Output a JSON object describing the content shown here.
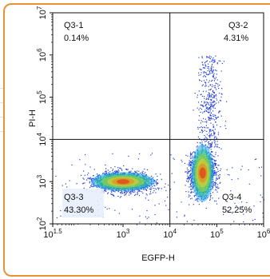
{
  "chart_data": {
    "type": "scatter",
    "title": "",
    "xlabel": "EGFP-H",
    "ylabel": "PI-H",
    "x_scale": "log",
    "y_scale": "log",
    "xlim": [
      31.6,
      1000000
    ],
    "ylim": [
      100,
      10000000
    ],
    "gates": {
      "x": 10000,
      "y": 10000
    },
    "grid": false,
    "x_ticks": [
      {
        "base": "10",
        "exp": "1.5"
      },
      {
        "base": "10",
        "exp": "3"
      },
      {
        "base": "10",
        "exp": "4"
      },
      {
        "base": "10",
        "exp": "5"
      },
      {
        "base": "10",
        "exp": "6"
      }
    ],
    "y_ticks": [
      {
        "base": "10",
        "exp": "2"
      },
      {
        "base": "10",
        "exp": "3"
      },
      {
        "base": "10",
        "exp": "4"
      },
      {
        "base": "10",
        "exp": "5"
      },
      {
        "base": "10",
        "exp": "6"
      },
      {
        "base": "10",
        "exp": "7"
      }
    ],
    "quadrants": [
      {
        "name": "Q3-1",
        "percent": "0.14%"
      },
      {
        "name": "Q3-2",
        "percent": "4.31%"
      },
      {
        "name": "Q3-3",
        "percent": "43.30%"
      },
      {
        "name": "Q3-4",
        "percent": "52.25%"
      }
    ],
    "populations": [
      {
        "label": "Q3-3 cluster",
        "center": [
          1000,
          1000
        ],
        "spread_log": [
          0.45,
          0.17
        ],
        "color": "#2540d8"
      },
      {
        "label": "Q3-4 cluster",
        "center": [
          50000,
          1600
        ],
        "spread_log": [
          0.2,
          0.38
        ],
        "color": "#2540d8"
      },
      {
        "label": "Q3-2 tail",
        "center": [
          70000,
          60000
        ],
        "spread_log": [
          0.18,
          0.5
        ],
        "color": "#2540d8"
      }
    ],
    "density_colors": [
      "#2540d8",
      "#20a8e8",
      "#2fc98a",
      "#a8e030",
      "#f0d020",
      "#f07a18",
      "#e02010"
    ]
  }
}
